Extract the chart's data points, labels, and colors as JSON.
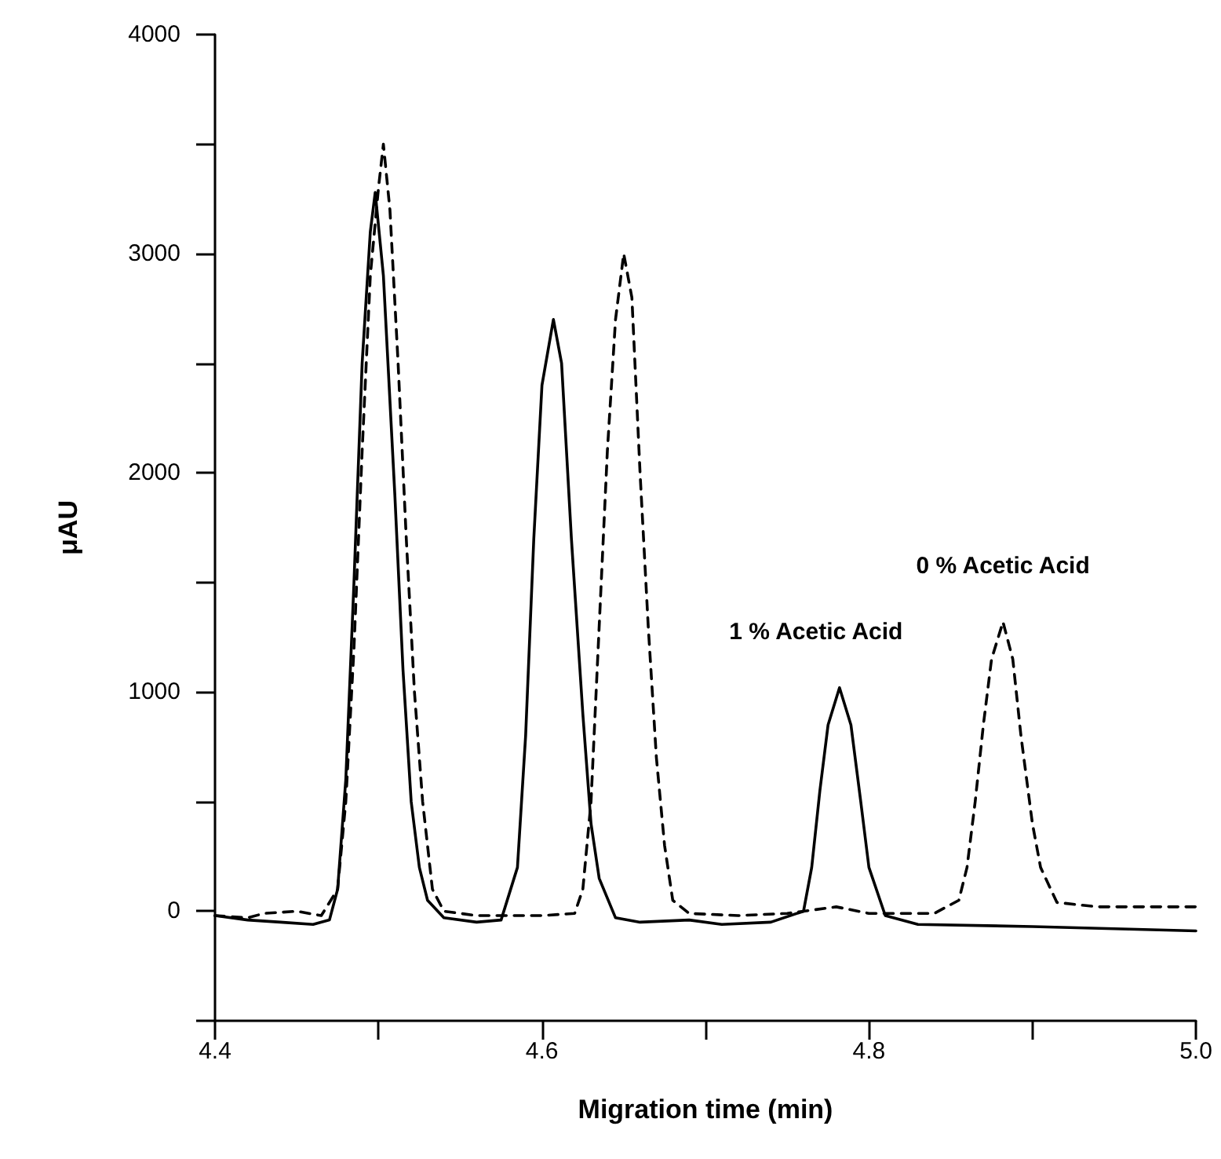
{
  "chart_data": {
    "type": "line",
    "xlabel": "Migration time (min)",
    "ylabel": "μAU",
    "xlim": [
      4.4,
      5.0
    ],
    "xticks": [
      4.4,
      {
        "value": 4.5,
        "label": null
      },
      4.6,
      {
        "value": 4.7,
        "label": null
      },
      4.8,
      {
        "value": 4.9,
        "label": null
      },
      {
        "value": 5.0,
        "label": "5.0"
      }
    ],
    "ylim": [
      -500,
      4000
    ],
    "yticks": [
      {
        "value": -500,
        "label": null
      },
      0,
      {
        "value": 500,
        "label": null
      },
      1000,
      {
        "value": 1500,
        "label": null
      },
      2000,
      {
        "value": 2500,
        "label": null
      },
      3000,
      {
        "value": 3500,
        "label": null
      },
      4000
    ],
    "grid": false,
    "marker": "none",
    "series": [
      {
        "name": "1 % Acetic Acid",
        "color": "#000000",
        "line_style": "solid",
        "x": [
          4.4,
          4.42,
          4.44,
          4.46,
          4.47,
          4.475,
          4.48,
          4.485,
          4.49,
          4.495,
          4.498,
          4.503,
          4.51,
          4.515,
          4.52,
          4.525,
          4.53,
          4.54,
          4.56,
          4.575,
          4.585,
          4.59,
          4.595,
          4.6,
          4.607,
          4.612,
          4.618,
          4.625,
          4.63,
          4.635,
          4.645,
          4.66,
          4.69,
          4.71,
          4.74,
          4.76,
          4.765,
          4.77,
          4.775,
          4.782,
          4.789,
          4.795,
          4.8,
          4.81,
          4.83,
          4.9,
          5.0
        ],
        "values": [
          -20,
          -40,
          -50,
          -60,
          -40,
          100,
          600,
          1500,
          2500,
          3100,
          3280,
          2900,
          1900,
          1100,
          500,
          200,
          50,
          -30,
          -50,
          -40,
          200,
          800,
          1700,
          2400,
          2700,
          2500,
          1700,
          900,
          400,
          150,
          -30,
          -50,
          -40,
          -60,
          -50,
          0,
          200,
          550,
          850,
          1020,
          850,
          500,
          200,
          -20,
          -60,
          -70,
          -90
        ]
      },
      {
        "name": "0 % Acetic Acid",
        "color": "#000000",
        "line_style": "dashed",
        "x": [
          4.4,
          4.42,
          4.43,
          4.45,
          4.465,
          4.475,
          4.48,
          4.485,
          4.49,
          4.495,
          4.5,
          4.503,
          4.507,
          4.512,
          4.517,
          4.522,
          4.527,
          4.533,
          4.54,
          4.56,
          4.6,
          4.62,
          4.625,
          4.63,
          4.635,
          4.64,
          4.645,
          4.65,
          4.655,
          4.66,
          4.665,
          4.67,
          4.675,
          4.68,
          4.69,
          4.72,
          4.75,
          4.78,
          4.8,
          4.84,
          4.855,
          4.86,
          4.865,
          4.87,
          4.875,
          4.882,
          4.888,
          4.893,
          4.9,
          4.905,
          4.915,
          4.94,
          5.0
        ],
        "values": [
          -20,
          -30,
          -10,
          0,
          -20,
          100,
          500,
          1200,
          2100,
          2900,
          3300,
          3500,
          3200,
          2500,
          1700,
          1000,
          500,
          100,
          0,
          -20,
          -20,
          -10,
          100,
          500,
          1300,
          2100,
          2700,
          3000,
          2800,
          2000,
          1300,
          700,
          300,
          50,
          -10,
          -20,
          -10,
          20,
          -10,
          -10,
          50,
          200,
          500,
          850,
          1150,
          1320,
          1150,
          800,
          400,
          200,
          40,
          20,
          20
        ]
      }
    ]
  }
}
